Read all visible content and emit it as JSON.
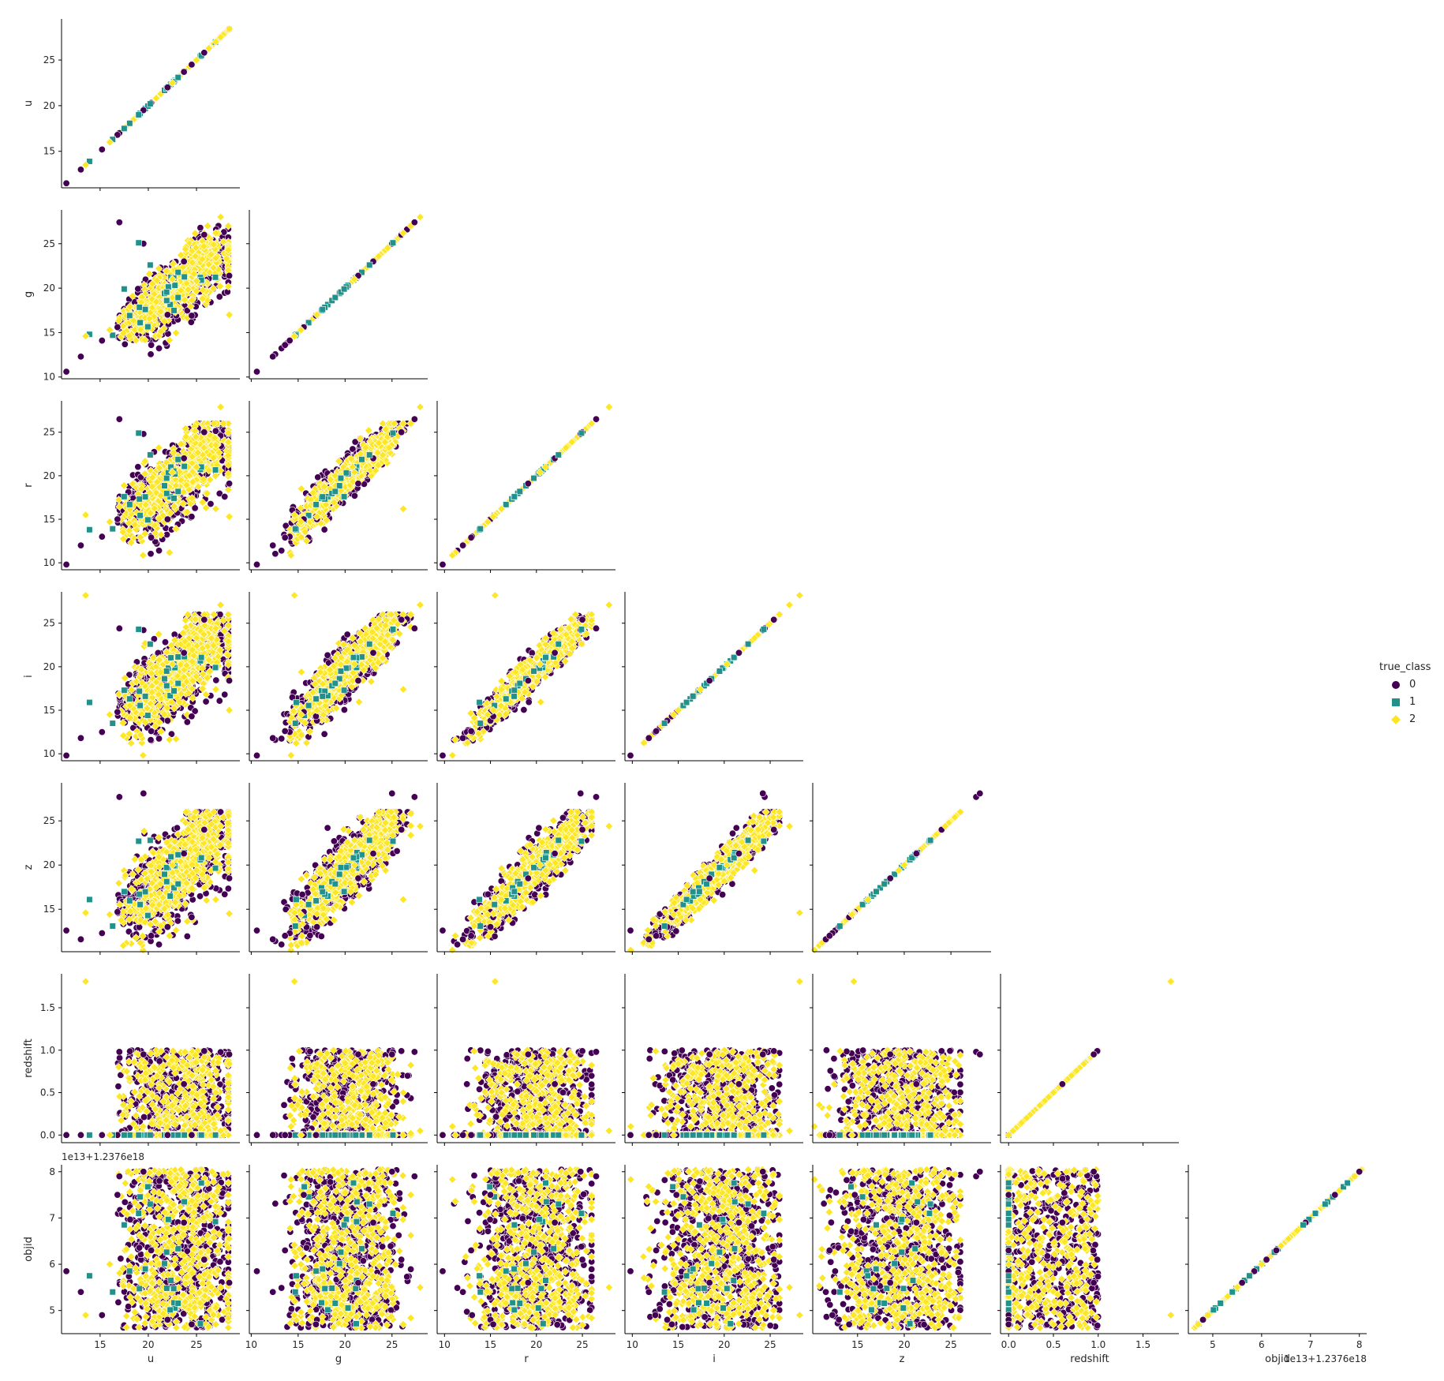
{
  "chart_data": {
    "type": "scatter",
    "title": "",
    "variables": [
      "u",
      "g",
      "r",
      "i",
      "z",
      "redshift",
      "objid"
    ],
    "axis_ranges": {
      "u": [
        11.0,
        29.5
      ],
      "g": [
        9.8,
        28.8
      ],
      "r": [
        9.2,
        28.6
      ],
      "i": [
        9.2,
        28.6
      ],
      "z": [
        10.2,
        29.3
      ],
      "redshift": [
        -0.09,
        1.9
      ],
      "objid": [
        4.5,
        8.15
      ]
    },
    "ticks": {
      "u": [
        15,
        20,
        25
      ],
      "g": [
        10,
        15,
        20,
        25
      ],
      "r": [
        10,
        15,
        20,
        25
      ],
      "i": [
        10,
        15,
        20,
        25
      ],
      "z": [
        15,
        20,
        25
      ],
      "redshift": [
        0.0,
        0.5,
        1.0,
        1.5
      ],
      "objid": [
        5,
        6,
        7,
        8
      ]
    },
    "row_ticks": {
      "u": [
        15,
        20,
        25
      ],
      "g": [
        10,
        15,
        20,
        25
      ],
      "r": [
        10,
        15,
        20,
        25
      ],
      "i": [
        10,
        15,
        20,
        25
      ],
      "z": [
        15,
        20,
        25
      ],
      "redshift": [
        0.0,
        0.5,
        1.0,
        1.5
      ],
      "objid": [
        5,
        6,
        7,
        8
      ]
    },
    "tick_format": {
      "redshift": 1
    },
    "offset_label": "1e13+1.2376e18",
    "legend": {
      "title": "true_class",
      "placement": "right",
      "entries": [
        {
          "label": "0",
          "color": "#440154",
          "marker": "circle"
        },
        {
          "label": "1",
          "color": "#21918c",
          "marker": "square"
        },
        {
          "label": "2",
          "color": "#fde725",
          "marker": "diamond"
        }
      ]
    },
    "grid": false,
    "corner": true,
    "series": [
      {
        "name": "0",
        "points": [
          [
            11.5,
            10.6,
            9.8,
            9.8,
            12.6,
            0.0,
            5.85
          ],
          [
            13.0,
            12.3,
            12.0,
            11.8,
            11.6,
            0.0,
            5.4
          ],
          [
            15.2,
            14.1,
            13.0,
            12.5,
            12.3,
            0.0,
            4.9
          ],
          [
            17.0,
            27.4,
            26.5,
            24.4,
            27.7,
            0.98,
            7.9
          ],
          [
            19.5,
            25.0,
            24.8,
            24.2,
            28.1,
            0.95,
            8.0
          ],
          [
            22.0,
            17.0,
            15.0,
            13.8,
            13.0,
            0.0,
            4.8
          ],
          [
            24.5,
            16.9,
            15.3,
            14.3,
            14.1,
            0.0,
            4.7
          ],
          [
            25.8,
            26.0,
            25.0,
            25.4,
            24.0,
            0.99,
            6.1
          ],
          [
            28.4,
            21.4,
            19.1,
            18.4,
            18.5,
            0.95,
            5.6
          ],
          [
            20.3,
            13.6,
            12.9,
            12.6,
            12.0,
            0.0,
            6.3
          ],
          [
            16.8,
            15.6,
            15.0,
            14.8,
            14.7,
            0.0,
            7.5
          ],
          [
            23.7,
            23.0,
            22.0,
            21.6,
            21.3,
            0.6,
            6.9
          ]
        ]
      },
      {
        "name": "1",
        "points": [
          [
            13.9,
            14.8,
            13.8,
            15.9,
            16.1,
            0.0,
            5.75
          ],
          [
            16.3,
            14.7,
            13.9,
            13.5,
            13.1,
            0.0,
            5.4
          ],
          [
            19.0,
            25.1,
            24.9,
            24.3,
            22.7,
            0.0,
            7.1
          ],
          [
            20.2,
            22.6,
            22.4,
            22.6,
            22.8,
            0.0,
            7.3
          ],
          [
            17.5,
            19.9,
            17.6,
            17.3,
            17.0,
            0.0,
            6.85
          ]
        ]
      },
      {
        "name": "2",
        "points": [
          [
            13.5,
            14.6,
            15.5,
            28.2,
            14.6,
            1.81,
            4.9
          ],
          [
            27.5,
            28.0,
            27.9,
            27.1,
            24.4,
            0.05,
            5.5
          ],
          [
            28.4,
            17.0,
            15.3,
            15.0,
            14.5,
            0.84,
            6.55
          ],
          [
            16.0,
            15.3,
            14.7,
            14.5,
            14.4,
            0.0,
            6.0
          ],
          [
            25.0,
            20.8,
            21.0,
            23.3,
            19.4,
            0.2,
            7.9
          ],
          [
            27.0,
            26.2,
            16.2,
            17.4,
            16.1,
            0.5,
            4.7
          ],
          [
            22.5,
            21.0,
            20.4,
            20.3,
            20.0,
            0.35,
            6.4
          ]
        ]
      }
    ],
    "bands": {
      "objid": [
        4.62,
        8.05
      ],
      "redshift_band": [
        0.0,
        1.0
      ]
    }
  }
}
